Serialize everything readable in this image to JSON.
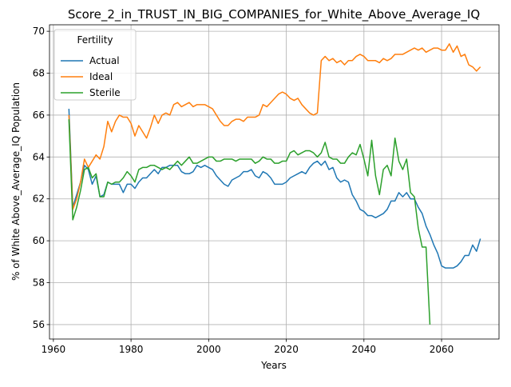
{
  "chart_data": {
    "type": "line",
    "title": "Score_2_in_TRUST_IN_BIG_COMPANIES_for_White_Above_Average_IQ",
    "xlabel": "Years",
    "ylabel": "% of White Above_Average_IQ Population",
    "legend_title": "Fertility",
    "legend_loc": "upper left",
    "grid": true,
    "xlim": [
      1959,
      2074.8
    ],
    "ylim": [
      55.31,
      70.31
    ],
    "xticks": [
      1960,
      1980,
      2000,
      2020,
      2040,
      2060
    ],
    "yticks": [
      56,
      58,
      60,
      62,
      64,
      66,
      68,
      70
    ],
    "x": [
      1964,
      1965,
      1966,
      1967,
      1968,
      1969,
      1970,
      1971,
      1972,
      1973,
      1974,
      1975,
      1976,
      1977,
      1978,
      1979,
      1980,
      1981,
      1982,
      1983,
      1984,
      1985,
      1986,
      1987,
      1988,
      1989,
      1990,
      1991,
      1992,
      1993,
      1994,
      1995,
      1996,
      1997,
      1998,
      1999,
      2000,
      2001,
      2002,
      2003,
      2004,
      2005,
      2006,
      2007,
      2008,
      2009,
      2010,
      2011,
      2012,
      2013,
      2014,
      2015,
      2016,
      2017,
      2018,
      2019,
      2020,
      2021,
      2022,
      2023,
      2024,
      2025,
      2026,
      2027,
      2028,
      2029,
      2030,
      2031,
      2032,
      2033,
      2034,
      2035,
      2036,
      2037,
      2038,
      2039,
      2040,
      2041,
      2042,
      2043,
      2044,
      2045,
      2046,
      2047,
      2048,
      2049,
      2050,
      2051,
      2052,
      2053,
      2054,
      2055,
      2056,
      2057,
      2058,
      2059,
      2060,
      2061,
      2062,
      2063,
      2064,
      2065,
      2066,
      2067,
      2068,
      2069,
      2070
    ],
    "series": [
      {
        "name": "Actual",
        "color": "#1f77b4",
        "values": [
          66.3,
          61.6,
          62.2,
          62.8,
          63.6,
          63.4,
          62.7,
          63.1,
          62.1,
          62.2,
          62.8,
          62.7,
          62.7,
          62.7,
          62.3,
          62.7,
          62.7,
          62.5,
          62.8,
          63.0,
          63.0,
          63.2,
          63.4,
          63.2,
          63.5,
          63.5,
          63.6,
          63.6,
          63.6,
          63.3,
          63.2,
          63.2,
          63.3,
          63.6,
          63.5,
          63.6,
          63.5,
          63.4,
          63.1,
          62.9,
          62.7,
          62.6,
          62.9,
          63.0,
          63.1,
          63.3,
          63.3,
          63.4,
          63.1,
          63.0,
          63.3,
          63.2,
          63.0,
          62.7,
          62.7,
          62.7,
          62.8,
          63.0,
          63.1,
          63.2,
          63.3,
          63.2,
          63.5,
          63.7,
          63.8,
          63.6,
          63.8,
          63.4,
          63.5,
          63.0,
          62.8,
          62.9,
          62.8,
          62.2,
          61.9,
          61.5,
          61.4,
          61.2,
          61.2,
          61.1,
          61.2,
          61.3,
          61.5,
          61.9,
          61.9,
          62.3,
          62.1,
          62.3,
          62.0,
          62.0,
          61.6,
          61.3,
          60.7,
          60.3,
          59.8,
          59.4,
          58.8,
          58.7,
          58.7,
          58.7,
          58.8,
          59.0,
          59.3,
          59.3,
          59.8,
          59.5,
          60.1
        ]
      },
      {
        "name": "Ideal",
        "color": "#ff7f0e",
        "values": [
          66.0,
          61.5,
          62.0,
          62.8,
          63.9,
          63.5,
          63.8,
          64.1,
          63.9,
          64.5,
          65.7,
          65.2,
          65.7,
          66.0,
          65.9,
          65.9,
          65.6,
          65.0,
          65.5,
          65.2,
          64.9,
          65.4,
          66.0,
          65.6,
          66.0,
          66.1,
          66.0,
          66.5,
          66.6,
          66.4,
          66.5,
          66.6,
          66.4,
          66.5,
          66.5,
          66.5,
          66.4,
          66.3,
          66.0,
          65.7,
          65.5,
          65.5,
          65.7,
          65.8,
          65.8,
          65.7,
          65.9,
          65.9,
          65.9,
          66.0,
          66.5,
          66.4,
          66.6,
          66.8,
          67.0,
          67.1,
          67.0,
          66.8,
          66.7,
          66.8,
          66.5,
          66.3,
          66.1,
          66.0,
          66.1,
          68.6,
          68.8,
          68.6,
          68.7,
          68.5,
          68.6,
          68.4,
          68.6,
          68.6,
          68.8,
          68.9,
          68.8,
          68.6,
          68.6,
          68.6,
          68.5,
          68.7,
          68.6,
          68.7,
          68.9,
          68.9,
          68.9,
          69.0,
          69.1,
          69.2,
          69.1,
          69.2,
          69.0,
          69.1,
          69.2,
          69.2,
          69.1,
          69.1,
          69.4,
          69.0,
          69.3,
          68.8,
          68.9,
          68.4,
          68.3,
          68.1,
          68.3
        ]
      },
      {
        "name": "Sterile",
        "color": "#2ca02c",
        "values": [
          65.8,
          61.0,
          61.6,
          62.4,
          63.4,
          63.5,
          63.0,
          63.2,
          62.1,
          62.1,
          62.8,
          62.7,
          62.8,
          62.8,
          63.0,
          63.3,
          63.1,
          62.8,
          63.4,
          63.5,
          63.5,
          63.6,
          63.6,
          63.5,
          63.4,
          63.5,
          63.4,
          63.6,
          63.8,
          63.6,
          63.8,
          64.0,
          63.7,
          63.7,
          63.8,
          63.9,
          64.0,
          64.0,
          63.8,
          63.8,
          63.9,
          63.9,
          63.9,
          63.8,
          63.9,
          63.9,
          63.9,
          63.9,
          63.7,
          63.8,
          64.0,
          63.9,
          63.9,
          63.7,
          63.7,
          63.8,
          63.8,
          64.2,
          64.3,
          64.1,
          64.2,
          64.3,
          64.3,
          64.2,
          64.0,
          64.2,
          64.7,
          64.0,
          63.9,
          63.9,
          63.7,
          63.7,
          64.0,
          64.2,
          64.1,
          64.6,
          63.9,
          63.1,
          64.8,
          63.1,
          62.2,
          63.4,
          63.6,
          63.1,
          64.9,
          63.8,
          63.4,
          63.9,
          62.3,
          62.1,
          60.6,
          59.7,
          59.7,
          56.0,
          null,
          null,
          null,
          null,
          null,
          null,
          null,
          null,
          null,
          null,
          null,
          null,
          null
        ]
      }
    ]
  }
}
